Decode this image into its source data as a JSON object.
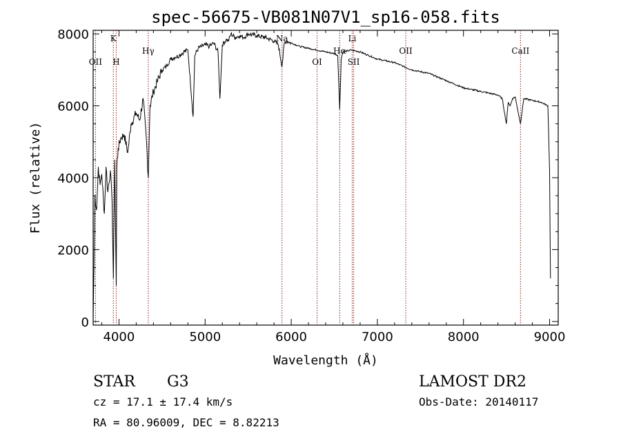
{
  "chart_data": {
    "type": "line",
    "title": "spec-56675-VB081N07V1_sp16-058.fits",
    "xlabel": "Wavelength (Å)",
    "ylabel": "Flux (relative)",
    "xlim": [
      3700,
      9100
    ],
    "ylim": [
      -100,
      8100
    ],
    "xticks": [
      4000,
      5000,
      6000,
      7000,
      8000,
      9000
    ],
    "yticks": [
      0,
      2000,
      4000,
      6000,
      8000
    ],
    "series": [
      {
        "x": [
          3700,
          3710,
          3720,
          3740,
          3760,
          3780,
          3800,
          3830,
          3850,
          3870,
          3900,
          3920,
          3935,
          3950,
          3968,
          3975,
          3990,
          4020,
          4060,
          4102,
          4140,
          4200,
          4240,
          4280,
          4320,
          4340,
          4360,
          4400,
          4450,
          4500,
          4550,
          4600,
          4650,
          4700,
          4750,
          4800,
          4861,
          4880,
          4920,
          5000,
          5050,
          5100,
          5150,
          5172,
          5200,
          5250,
          5270,
          5300,
          5350,
          5400,
          5450,
          5500,
          5600,
          5700,
          5800,
          5850,
          5893,
          5920,
          5950,
          6000,
          6100,
          6200,
          6300,
          6400,
          6500,
          6540,
          6563,
          6580,
          6600,
          6700,
          6800,
          6900,
          7000,
          7100,
          7200,
          7300,
          7400,
          7500,
          7600,
          7700,
          7800,
          7900,
          8000,
          8100,
          8200,
          8300,
          8400,
          8450,
          8498,
          8520,
          8542,
          8570,
          8600,
          8662,
          8700,
          8800,
          8900,
          8980,
          9000,
          9010
        ],
        "y": [
          100,
          1500,
          3500,
          3100,
          4300,
          3800,
          4100,
          3000,
          4300,
          3600,
          4200,
          3300,
          1200,
          4500,
          1000,
          4300,
          4800,
          5100,
          5200,
          4700,
          5500,
          5800,
          5600,
          6200,
          5000,
          4000,
          6000,
          6400,
          6700,
          7000,
          7100,
          7300,
          7350,
          7400,
          7500,
          7550,
          5700,
          7400,
          7600,
          7700,
          7650,
          7750,
          7500,
          6200,
          7700,
          7850,
          7800,
          8000,
          7900,
          7950,
          7900,
          8000,
          7950,
          7900,
          7800,
          7700,
          7100,
          7750,
          7800,
          7750,
          7650,
          7600,
          7550,
          7500,
          7450,
          7400,
          5900,
          7300,
          7500,
          7550,
          7500,
          7400,
          7300,
          7250,
          7200,
          7100,
          7000,
          6950,
          6900,
          6800,
          6700,
          6600,
          6500,
          6450,
          6400,
          6350,
          6300,
          6200,
          5500,
          6100,
          6000,
          6200,
          6250,
          5500,
          6200,
          6150,
          6100,
          6000,
          4200,
          1200
        ]
      }
    ],
    "lines": [
      {
        "x": 3727,
        "label": "OII",
        "level": 0
      },
      {
        "x": 3934,
        "label": "K",
        "level": 1
      },
      {
        "x": 3968,
        "label": "H",
        "level": 0
      },
      {
        "x": 4340,
        "label": "Hγ",
        "level": 2
      },
      {
        "x": 5893,
        "label": "Na",
        "level": 1
      },
      {
        "x": 6300,
        "label": "OI",
        "level": 0
      },
      {
        "x": 6563,
        "label": "Hα",
        "level": 2
      },
      {
        "x": 6708,
        "label": "Li",
        "level": 1
      },
      {
        "x": 6725,
        "label": "SII",
        "level": 0
      },
      {
        "x": 7330,
        "label": "OII",
        "level": 2
      },
      {
        "x": 8662,
        "label": "CaII",
        "level": 2
      }
    ],
    "grid": false
  },
  "info": {
    "class": "STAR",
    "subclass": "G3",
    "survey": "LAMOST DR2",
    "cz": "cz = 17.1 ± 17.4 km/s",
    "obsdate": "Obs-Date: 20140117",
    "radec": "RA =  80.96009, DEC =   8.82213"
  }
}
